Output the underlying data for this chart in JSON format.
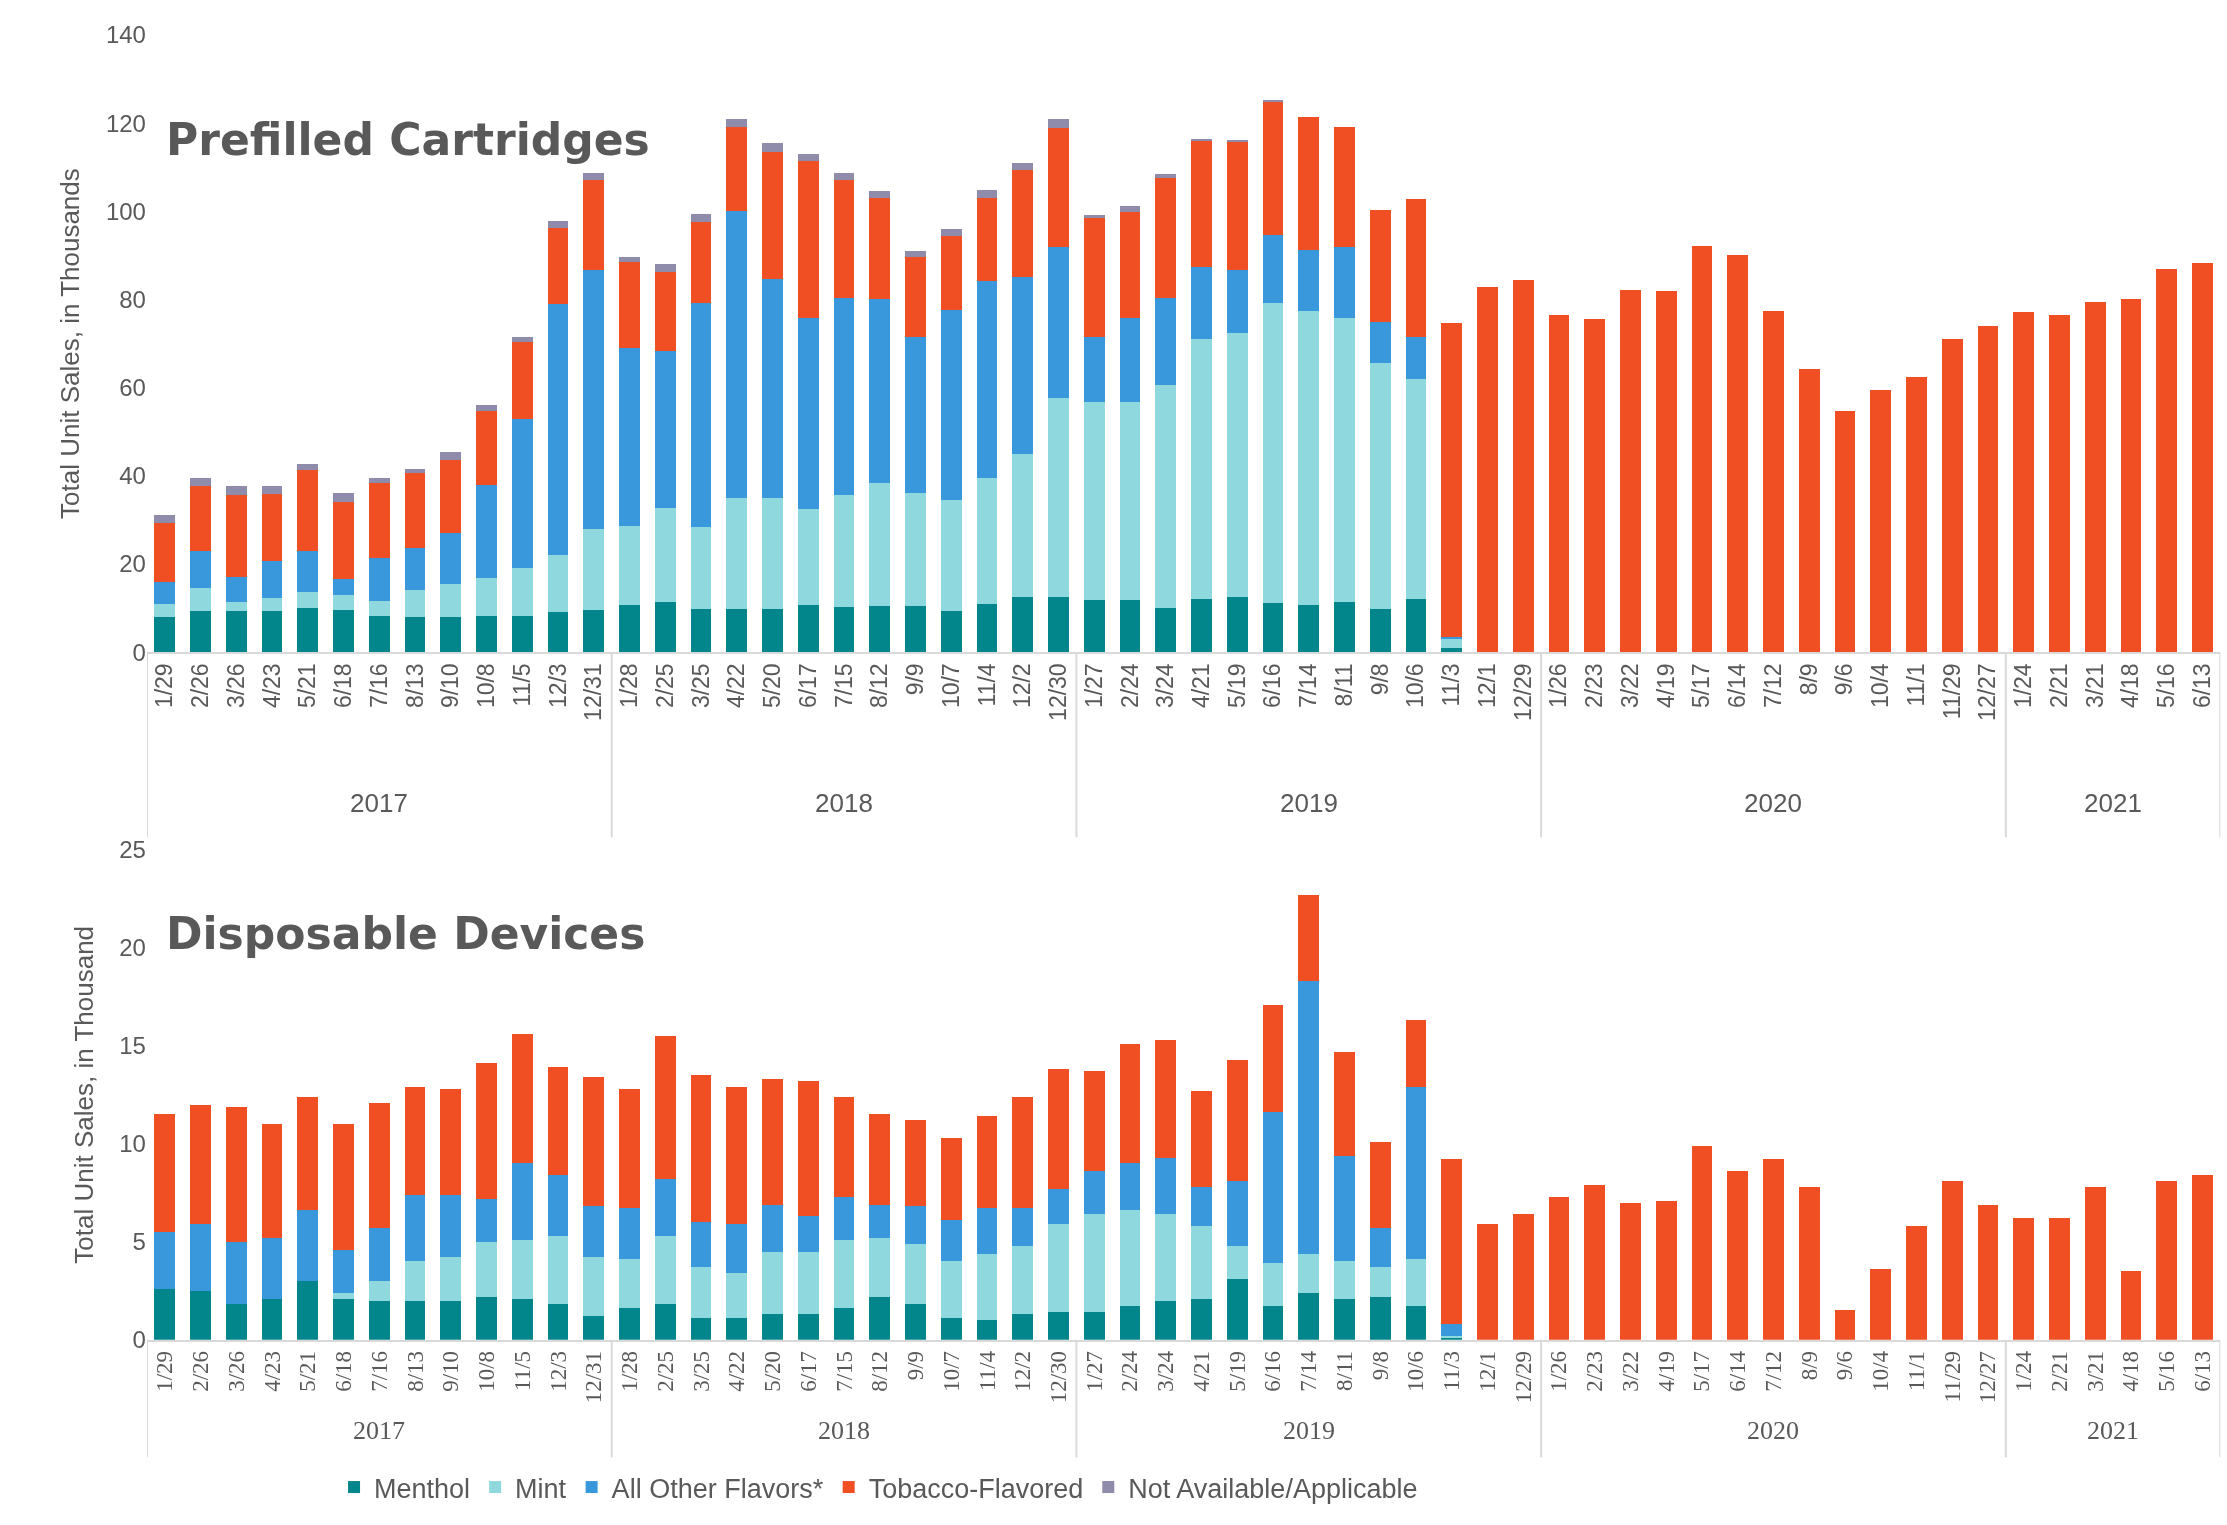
{
  "chart_data": [
    {
      "type": "bar",
      "stacked": true,
      "title": "Prefilled Cartridges",
      "ylabel": "Total Unit Sales, in Thousands",
      "categories": [
        "1/29",
        "2/26",
        "3/26",
        "4/23",
        "5/21",
        "6/18",
        "7/16",
        "8/13",
        "9/10",
        "10/8",
        "11/5",
        "12/3",
        "12/31",
        "1/28",
        "2/25",
        "3/25",
        "4/22",
        "5/20",
        "6/17",
        "7/15",
        "8/12",
        "9/9",
        "10/7",
        "11/4",
        "12/2",
        "12/30",
        "1/27",
        "2/24",
        "3/24",
        "4/21",
        "5/19",
        "6/16",
        "7/14",
        "8/11",
        "9/8",
        "10/6",
        "11/3",
        "12/1",
        "12/29",
        "1/26",
        "2/23",
        "3/22",
        "4/19",
        "5/17",
        "6/14",
        "7/12",
        "8/9",
        "9/6",
        "10/4",
        "11/1",
        "11/29",
        "12/27",
        "1/24",
        "2/21",
        "3/21",
        "4/18",
        "5/16",
        "6/13"
      ],
      "ylim": [
        0,
        140
      ],
      "yticks": [
        0,
        20,
        40,
        60,
        80,
        100,
        120,
        140
      ],
      "legend": "bottom",
      "annotations": [
        "2017",
        "2018",
        "2019",
        "2020",
        "2021"
      ],
      "series": [
        {
          "name": "Menthol",
          "color": "#02868c",
          "values": [
            7.9,
            9.4,
            9.4,
            9.4,
            10.0,
            9.6,
            8.1,
            7.9,
            8.0,
            8.1,
            8.3,
            9.0,
            9.6,
            10.6,
            11.3,
            9.7,
            9.9,
            9.7,
            10.6,
            10.3,
            10.4,
            10.4,
            9.4,
            10.9,
            12.4,
            12.6,
            11.8,
            11.8,
            10.1,
            12.1,
            12.4,
            11.1,
            10.8,
            11.3,
            9.9,
            12.1,
            1.0,
            0,
            0,
            0,
            0,
            0,
            0,
            0,
            0,
            0,
            0,
            0,
            0,
            0,
            0,
            0,
            0,
            0,
            0,
            0,
            0,
            0
          ]
        },
        {
          "name": "Mint",
          "color": "#8fd9de",
          "values": [
            3.1,
            5.2,
            2.0,
            2.9,
            3.6,
            3.4,
            3.6,
            6.2,
            7.4,
            8.8,
            10.7,
            13.0,
            18.3,
            18.0,
            21.4,
            18.7,
            25.0,
            25.3,
            21.8,
            25.3,
            27.9,
            25.7,
            25.2,
            28.5,
            32.5,
            45.0,
            44.9,
            45.0,
            50.6,
            58.9,
            59.9,
            68.1,
            66.6,
            64.5,
            55.8,
            49.8,
            1.9,
            0,
            0,
            0,
            0,
            0,
            0,
            0,
            0,
            0,
            0,
            0,
            0,
            0,
            0,
            0,
            0,
            0,
            0,
            0,
            0,
            0
          ]
        },
        {
          "name": "All Other Flavors*",
          "color": "#3898db",
          "values": [
            4.9,
            8.4,
            5.6,
            8.4,
            9.4,
            3.6,
            9.7,
            9.5,
            11.7,
            21.1,
            33.9,
            57.0,
            58.8,
            40.5,
            35.6,
            50.9,
            65.1,
            49.6,
            43.5,
            44.8,
            41.8,
            35.5,
            43.0,
            44.7,
            40.2,
            34.4,
            14.9,
            19.0,
            19.7,
            16.3,
            14.5,
            15.5,
            13.9,
            16.2,
            9.1,
            9.7,
            0.6,
            0,
            0,
            0,
            0,
            0,
            0,
            0,
            0,
            0,
            0,
            0,
            0,
            0,
            0,
            0,
            0,
            0,
            0,
            0,
            0,
            0
          ]
        },
        {
          "name": "Tobacco-Flavored",
          "color": "#ef4f23",
          "values": [
            13.5,
            14.6,
            18.7,
            15.2,
            18.4,
            17.5,
            17.0,
            17.0,
            16.5,
            16.7,
            17.4,
            17.3,
            20.3,
            19.3,
            18.0,
            18.3,
            19.1,
            28.8,
            35.5,
            26.6,
            23.0,
            18.1,
            16.7,
            19.0,
            24.3,
            27.0,
            26.9,
            24.1,
            27.2,
            28.6,
            28.9,
            30.1,
            30.1,
            27.1,
            25.6,
            31.3,
            71.2,
            82.9,
            84.4,
            76.5,
            75.5,
            82.2,
            81.9,
            92.1,
            90,
            77.4,
            64.2,
            54.6,
            59.4,
            62.4,
            71,
            74,
            77.2,
            76.5,
            79.5,
            80,
            86.9,
            88.3
          ]
        },
        {
          "name": "Not Available/Applicable",
          "color": "#8e8bab",
          "values": [
            1.6,
            2.0,
            1.9,
            1.8,
            1.2,
            1.9,
            1.2,
            1.0,
            1.7,
            1.3,
            1.3,
            1.6,
            1.6,
            1.3,
            1.7,
            1.8,
            1.8,
            2.2,
            1.6,
            1.7,
            1.6,
            1.3,
            1.6,
            1.8,
            1.6,
            1.9,
            0.7,
            1.3,
            0.9,
            0.6,
            0.5,
            0.5,
            0,
            0,
            0,
            0,
            0,
            0,
            0,
            0,
            0,
            0,
            0,
            0,
            0,
            0,
            0,
            0,
            0,
            0,
            0,
            0,
            0,
            0,
            0,
            0,
            0,
            0
          ]
        }
      ]
    },
    {
      "type": "bar",
      "stacked": true,
      "title": "Disposable Devices",
      "ylabel": "Total Unit Sales, in Thousand",
      "categories": [
        "1/29",
        "2/26",
        "3/26",
        "4/23",
        "5/21",
        "6/18",
        "7/16",
        "8/13",
        "9/10",
        "10/8",
        "11/5",
        "12/3",
        "12/31",
        "1/28",
        "2/25",
        "3/25",
        "4/22",
        "5/20",
        "6/17",
        "7/15",
        "8/12",
        "9/9",
        "10/7",
        "11/4",
        "12/2",
        "12/30",
        "1/27",
        "2/24",
        "3/24",
        "4/21",
        "5/19",
        "6/16",
        "7/14",
        "8/11",
        "9/8",
        "10/6",
        "11/3",
        "12/1",
        "12/29",
        "1/26",
        "2/23",
        "3/22",
        "4/19",
        "5/17",
        "6/14",
        "7/12",
        "8/9",
        "9/6",
        "10/4",
        "11/1",
        "11/29",
        "12/27",
        "1/24",
        "2/21",
        "3/21",
        "4/18",
        "5/16",
        "6/13"
      ],
      "ylim": [
        0,
        25
      ],
      "yticks": [
        0,
        5,
        10,
        15,
        20,
        25
      ],
      "annotations": [
        "2017",
        "2018",
        "2019",
        "2020",
        "2021"
      ],
      "series": [
        {
          "color": "#02868c",
          "values": [
            2.6,
            2.5,
            1.8,
            2.1,
            3.0,
            2.1,
            2.0,
            2.0,
            2.0,
            2.2,
            2.1,
            1.8,
            1.2,
            1.6,
            1.8,
            1.1,
            1.1,
            1.3,
            1.3,
            1.6,
            2.2,
            1.8,
            1.1,
            1.0,
            1.3,
            1.4,
            1.4,
            1.7,
            2.0,
            2.1,
            3.1,
            1.7,
            2.4,
            2.1,
            2.2,
            1.7,
            0.1,
            0,
            0,
            0,
            0,
            0,
            0,
            0,
            0,
            0,
            0,
            0,
            0,
            0,
            0,
            0,
            0,
            0,
            0,
            0,
            0,
            0
          ]
        },
        {
          "color": "#8fd9de",
          "values": [
            0,
            0,
            0,
            0,
            0,
            0.3,
            1.0,
            2.0,
            2.2,
            2.8,
            3.0,
            3.5,
            3.0,
            2.5,
            3.5,
            2.6,
            2.3,
            3.2,
            3.2,
            3.5,
            3.0,
            3.1,
            2.9,
            3.4,
            3.5,
            4.5,
            5.0,
            4.9,
            4.4,
            3.7,
            1.7,
            2.2,
            2.0,
            1.9,
            1.5,
            2.4,
            0.1,
            0,
            0,
            0,
            0,
            0,
            0,
            0,
            0,
            0,
            0,
            0,
            0,
            0,
            0,
            0,
            0,
            0,
            0,
            0,
            0,
            0
          ]
        },
        {
          "color": "#3898db",
          "values": [
            2.9,
            3.4,
            3.2,
            3.1,
            3.6,
            2.2,
            2.7,
            3.4,
            3.2,
            2.2,
            3.9,
            3.1,
            2.6,
            2.6,
            2.9,
            2.3,
            2.5,
            2.4,
            1.8,
            2.2,
            1.7,
            1.9,
            2.1,
            2.3,
            1.9,
            1.8,
            2.2,
            2.4,
            2.9,
            2.0,
            3.3,
            7.7,
            13.9,
            5.4,
            2.0,
            8.8,
            0.6,
            0,
            0,
            0,
            0,
            0,
            0,
            0,
            0,
            0,
            0,
            0,
            0,
            0,
            0,
            0,
            0,
            0,
            0,
            0,
            0,
            0
          ]
        },
        {
          "color": "#ef4f23",
          "values": [
            6.0,
            6.1,
            6.9,
            5.8,
            5.8,
            6.4,
            6.4,
            5.5,
            5.4,
            6.9,
            6.6,
            5.5,
            6.6,
            6.1,
            7.3,
            7.5,
            7.0,
            6.4,
            6.9,
            5.1,
            4.6,
            4.4,
            4.2,
            4.7,
            5.7,
            6.1,
            5.1,
            6.1,
            6.0,
            4.9,
            6.2,
            5.5,
            4.4,
            5.3,
            4.4,
            3.4,
            8.4,
            5.9,
            6.4,
            7.3,
            7.9,
            7.0,
            7.1,
            9.9,
            8.6,
            9.2,
            7.8,
            1.5,
            3.6,
            5.8,
            8.1,
            6.9,
            6.2,
            6.2,
            7.8,
            3.5,
            8.1,
            8.4
          ]
        },
        {
          "color": "#8e8bab",
          "values": [
            0,
            0,
            0,
            0,
            0,
            0,
            0,
            0,
            0,
            0,
            0,
            0,
            0,
            0,
            0,
            0,
            0,
            0,
            0,
            0,
            0,
            0,
            0,
            0,
            0,
            0,
            0,
            0,
            0,
            0,
            0,
            0,
            0,
            0,
            0,
            0,
            0,
            0,
            0,
            0,
            0,
            0,
            0,
            0,
            0,
            0,
            0,
            0,
            0,
            0,
            0,
            0,
            0,
            0,
            0,
            0,
            0,
            0
          ]
        }
      ]
    }
  ]
}
